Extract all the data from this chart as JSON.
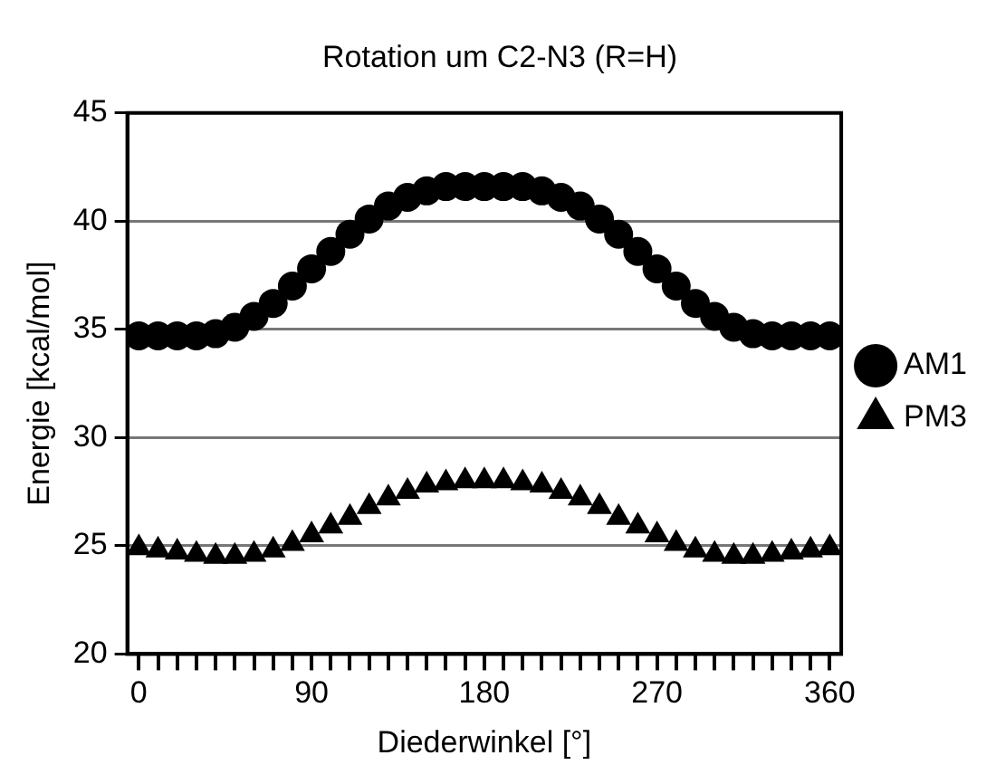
{
  "chart_data": {
    "type": "scatter",
    "title": "Rotation um C2-N3 (R=H)",
    "xlabel": "Diederwinkel [°]",
    "ylabel": "Energie [kcal/mol]",
    "x": [
      0,
      10,
      20,
      30,
      40,
      50,
      60,
      70,
      80,
      90,
      100,
      110,
      120,
      130,
      140,
      150,
      160,
      170,
      180,
      190,
      200,
      210,
      220,
      230,
      240,
      250,
      260,
      270,
      280,
      290,
      300,
      310,
      320,
      330,
      340,
      350,
      360
    ],
    "series": [
      {
        "name": "AM1",
        "color": "#000000",
        "marker": "circle",
        "values": [
          34.7,
          34.7,
          34.7,
          34.7,
          34.8,
          35.1,
          35.6,
          36.2,
          37.0,
          37.8,
          38.6,
          39.4,
          40.1,
          40.7,
          41.1,
          41.4,
          41.6,
          41.6,
          41.6,
          41.6,
          41.6,
          41.4,
          41.1,
          40.7,
          40.1,
          39.4,
          38.6,
          37.8,
          37.0,
          36.2,
          35.6,
          35.1,
          34.8,
          34.7,
          34.7,
          34.7,
          34.7
        ]
      },
      {
        "name": "PM3",
        "color": "#000000",
        "marker": "triangle",
        "values": [
          24.9,
          24.8,
          24.7,
          24.6,
          24.5,
          24.5,
          24.6,
          24.8,
          25.1,
          25.5,
          25.9,
          26.3,
          26.8,
          27.2,
          27.5,
          27.8,
          27.9,
          28.0,
          28.0,
          28.0,
          27.9,
          27.8,
          27.5,
          27.2,
          26.8,
          26.3,
          25.9,
          25.5,
          25.1,
          24.8,
          24.6,
          24.5,
          24.5,
          24.6,
          24.7,
          24.8,
          24.9
        ]
      }
    ],
    "xlim": [
      -6,
      366
    ],
    "xticks": [
      0,
      {
        "value": 10,
        "label": null
      },
      {
        "value": 20,
        "label": null
      },
      {
        "value": 30,
        "label": null
      },
      {
        "value": 40,
        "label": null
      },
      {
        "value": 50,
        "label": null
      },
      {
        "value": 60,
        "label": null
      },
      {
        "value": 70,
        "label": null
      },
      {
        "value": 80,
        "label": null
      },
      90,
      {
        "value": 100,
        "label": null
      },
      {
        "value": 110,
        "label": null
      },
      {
        "value": 120,
        "label": null
      },
      {
        "value": 130,
        "label": null
      },
      {
        "value": 140,
        "label": null
      },
      {
        "value": 150,
        "label": null
      },
      {
        "value": 160,
        "label": null
      },
      {
        "value": 170,
        "label": null
      },
      180,
      {
        "value": 190,
        "label": null
      },
      {
        "value": 200,
        "label": null
      },
      {
        "value": 210,
        "label": null
      },
      {
        "value": 220,
        "label": null
      },
      {
        "value": 230,
        "label": null
      },
      {
        "value": 240,
        "label": null
      },
      {
        "value": 250,
        "label": null
      },
      {
        "value": 260,
        "label": null
      },
      270,
      {
        "value": 280,
        "label": null
      },
      {
        "value": 290,
        "label": null
      },
      {
        "value": 300,
        "label": null
      },
      {
        "value": 310,
        "label": null
      },
      {
        "value": 320,
        "label": null
      },
      {
        "value": 330,
        "label": null
      },
      {
        "value": 340,
        "label": null
      },
      {
        "value": 350,
        "label": null
      },
      360
    ],
    "ylim": [
      20,
      45
    ],
    "yticks": [
      20,
      25,
      30,
      35,
      40,
      45
    ],
    "grid": "y",
    "legend": "right"
  }
}
